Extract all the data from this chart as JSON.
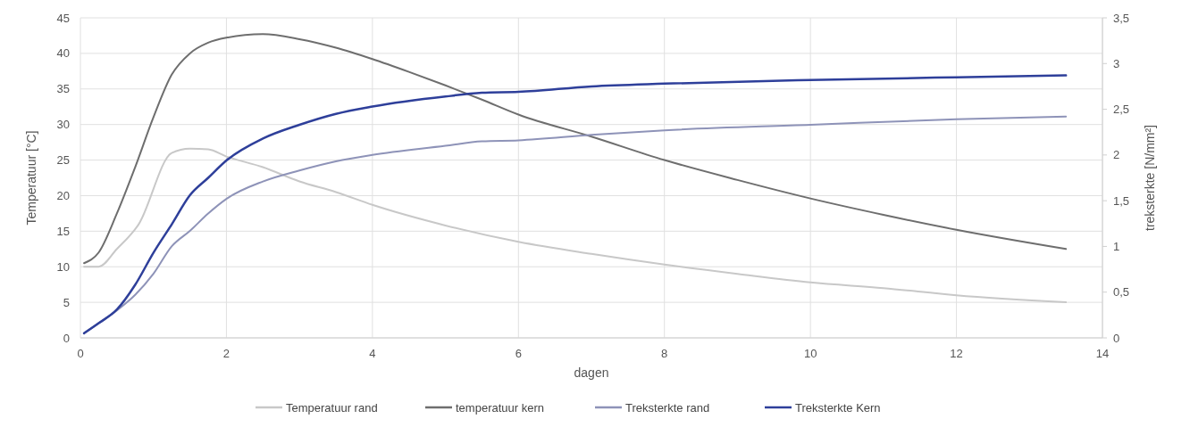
{
  "chart_data": {
    "type": "line",
    "xlabel": "dagen",
    "ylabel": "Temperatuur [°C]",
    "y2label": "treksterkte [N/mm²]",
    "xlim": [
      0,
      14
    ],
    "xticks": [
      0,
      2,
      4,
      6,
      8,
      10,
      12,
      14
    ],
    "ylim": [
      0,
      45
    ],
    "yticks": [
      0,
      5,
      10,
      15,
      20,
      25,
      30,
      35,
      40,
      45
    ],
    "y2lim": [
      0,
      3.5
    ],
    "y2ticks": [
      0,
      {
        "value": 0.5,
        "label": "0,5"
      },
      1,
      {
        "value": 1.5,
        "label": "1,5"
      },
      2,
      {
        "value": 2.5,
        "label": "2,5"
      },
      3,
      {
        "value": 3.5,
        "label": "3,5"
      }
    ],
    "grid": true,
    "legend": "bottom",
    "marker": "none",
    "line_style": "solid",
    "series": [
      {
        "name": "Temperatuur rand",
        "color": "#c8c8c8",
        "x": [
          0.05,
          0.25,
          0.5,
          0.8,
          1.25,
          1.5,
          1.75,
          2,
          2.5,
          3,
          3.5,
          4,
          5,
          6,
          7,
          8,
          9,
          10,
          11,
          12,
          13.5
        ],
        "values": [
          10,
          10,
          12.5,
          16,
          26,
          26.6,
          26.5,
          25.5,
          24,
          22,
          20.5,
          18.7,
          15.8,
          13.5,
          11.8,
          10.3,
          9,
          7.8,
          7,
          6,
          5
        ]
      },
      {
        "name": "temperatuur kern",
        "color": "#6e6e6e",
        "x": [
          0.05,
          0.25,
          0.5,
          0.75,
          1,
          1.25,
          1.5,
          1.75,
          2,
          2.5,
          3,
          3.5,
          4,
          4.5,
          5,
          5.5,
          6,
          7,
          8,
          9,
          10,
          11,
          12,
          13.5
        ],
        "values": [
          10.5,
          12,
          17.5,
          24,
          31,
          37,
          40,
          41.5,
          42.2,
          42.7,
          42,
          40.8,
          39.2,
          37.4,
          35.5,
          33.5,
          31.4,
          28.3,
          25,
          22.2,
          19.6,
          17.3,
          15.2,
          12.5
        ]
      },
      {
        "name": "Treksterkte rand",
        "color": "#8e93b8",
        "axis": "y2",
        "x": [
          0.05,
          0.25,
          0.5,
          0.75,
          1,
          1.25,
          1.5,
          1.75,
          2,
          2.5,
          3,
          3.5,
          4,
          5,
          5.5,
          6,
          7,
          8,
          10,
          12,
          13.5
        ],
        "values": [
          0.05,
          0.16,
          0.3,
          0.47,
          0.7,
          1,
          1.17,
          1.36,
          1.52,
          1.71,
          1.83,
          1.93,
          2,
          2.1,
          2.15,
          2.16,
          2.22,
          2.27,
          2.33,
          2.39,
          2.42
        ]
      },
      {
        "name": "Treksterkte Kern",
        "color": "#2e3f9a",
        "axis": "y2",
        "x": [
          0.05,
          0.25,
          0.5,
          0.75,
          1,
          1.25,
          1.5,
          1.75,
          2,
          2.5,
          3,
          3.5,
          4,
          5,
          5.5,
          6,
          7,
          8,
          10,
          12,
          13.5
        ],
        "values": [
          0.05,
          0.16,
          0.31,
          0.58,
          0.93,
          1.24,
          1.56,
          1.75,
          1.94,
          2.18,
          2.33,
          2.45,
          2.53,
          2.64,
          2.68,
          2.69,
          2.75,
          2.78,
          2.82,
          2.85,
          2.87
        ]
      }
    ]
  }
}
